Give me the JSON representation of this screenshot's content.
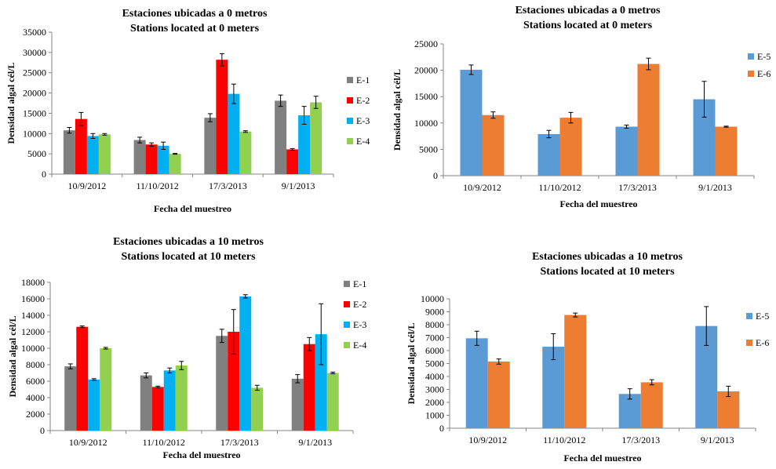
{
  "chart_data": [
    {
      "type": "bar",
      "title": [
        "Estaciones ubicadas a 0 metros",
        "Stations located at 0 meters"
      ],
      "xlabel": "Fecha del muestreo",
      "ylabel": "Densidad algal cél/L",
      "ylim": [
        0,
        35000
      ],
      "yticks": [
        0,
        5000,
        10000,
        15000,
        20000,
        25000,
        30000,
        35000
      ],
      "categories": [
        "10/9/2012",
        "11/10/2012",
        "17/3/2013",
        "9/1/2013"
      ],
      "legend_position": "right",
      "grid": false,
      "series": [
        {
          "name": "E-1",
          "color": "#808080",
          "values": [
            10800,
            8400,
            13900,
            18100
          ],
          "errors": [
            700,
            700,
            1000,
            1400
          ]
        },
        {
          "name": "E-2",
          "color": "#ff0000",
          "values": [
            13600,
            7300,
            28200,
            6100
          ],
          "errors": [
            1600,
            400,
            1500,
            200
          ]
        },
        {
          "name": "E-3",
          "color": "#00b0f0",
          "values": [
            9400,
            7000,
            19800,
            14500
          ],
          "errors": [
            600,
            900,
            2400,
            2200
          ]
        },
        {
          "name": "E-4",
          "color": "#92d050",
          "values": [
            9800,
            5000,
            10500,
            17700
          ],
          "errors": [
            200,
            100,
            200,
            1500
          ]
        }
      ]
    },
    {
      "type": "bar",
      "title": [
        "Estaciones ubicadas a 0 metros",
        "Stations located at 0 meters"
      ],
      "xlabel": "Fecha del muestreo",
      "ylabel": "Densidad algal cél/L",
      "ylim": [
        0,
        25000
      ],
      "yticks": [
        0,
        5000,
        10000,
        15000,
        20000,
        25000
      ],
      "categories": [
        "10/9/2012",
        "11/10/2012",
        "17/3/2013",
        "9/1/2013"
      ],
      "legend_position": "right",
      "grid": false,
      "series": [
        {
          "name": "E-5",
          "color": "#5b9bd5",
          "values": [
            20100,
            7900,
            9300,
            14500
          ],
          "errors": [
            900,
            700,
            300,
            3400
          ]
        },
        {
          "name": "E-6",
          "color": "#ed7d31",
          "values": [
            11500,
            11000,
            21200,
            9300
          ],
          "errors": [
            600,
            1000,
            1100,
            100
          ]
        }
      ]
    },
    {
      "type": "bar",
      "title": [
        "Estaciones ubicadas a 10 metros",
        "Stations located at 10 meters"
      ],
      "xlabel": "Fecha del muestreo",
      "ylabel": "Densidad algal cél/L",
      "ylim": [
        0,
        18000
      ],
      "yticks": [
        0,
        2000,
        4000,
        6000,
        8000,
        10000,
        12000,
        14000,
        16000,
        18000
      ],
      "categories": [
        "10/9/2012",
        "11/10/2012",
        "17/3/2013",
        "9/1/2013"
      ],
      "legend_position": "right",
      "grid": false,
      "series": [
        {
          "name": "E-1",
          "color": "#808080",
          "values": [
            7800,
            6700,
            11500,
            6300
          ],
          "errors": [
            300,
            300,
            800,
            500
          ]
        },
        {
          "name": "E-2",
          "color": "#ff0000",
          "values": [
            12600,
            5300,
            12000,
            10500
          ],
          "errors": [
            100,
            100,
            2700,
            800
          ]
        },
        {
          "name": "E-3",
          "color": "#00b0f0",
          "values": [
            6200,
            7300,
            16300,
            11700
          ],
          "errors": [
            100,
            300,
            200,
            3700
          ]
        },
        {
          "name": "E-4",
          "color": "#92d050",
          "values": [
            10000,
            7900,
            5200,
            7000
          ],
          "errors": [
            100,
            500,
            300,
            100
          ]
        }
      ]
    },
    {
      "type": "bar",
      "title": [
        "Estaciones ubicadas a 10 metros",
        "Stations located at 10 meters"
      ],
      "xlabel": "Fecha del muestreo",
      "ylabel": "Densidad  algal cél/L",
      "ylim": [
        0,
        10000
      ],
      "yticks": [
        0,
        1000,
        2000,
        3000,
        4000,
        5000,
        6000,
        7000,
        8000,
        9000,
        10000
      ],
      "categories": [
        "10/9/2012",
        "11/10/2012",
        "17/3/2013",
        "9/1/2013"
      ],
      "legend_position": "right",
      "grid": false,
      "series": [
        {
          "name": "E-5",
          "color": "#5b9bd5",
          "values": [
            6950,
            6300,
            2650,
            7900
          ],
          "errors": [
            550,
            1000,
            400,
            1500
          ]
        },
        {
          "name": "E-6",
          "color": "#ed7d31",
          "values": [
            5150,
            8750,
            3550,
            2850
          ],
          "errors": [
            200,
            150,
            200,
            400
          ]
        }
      ]
    }
  ]
}
